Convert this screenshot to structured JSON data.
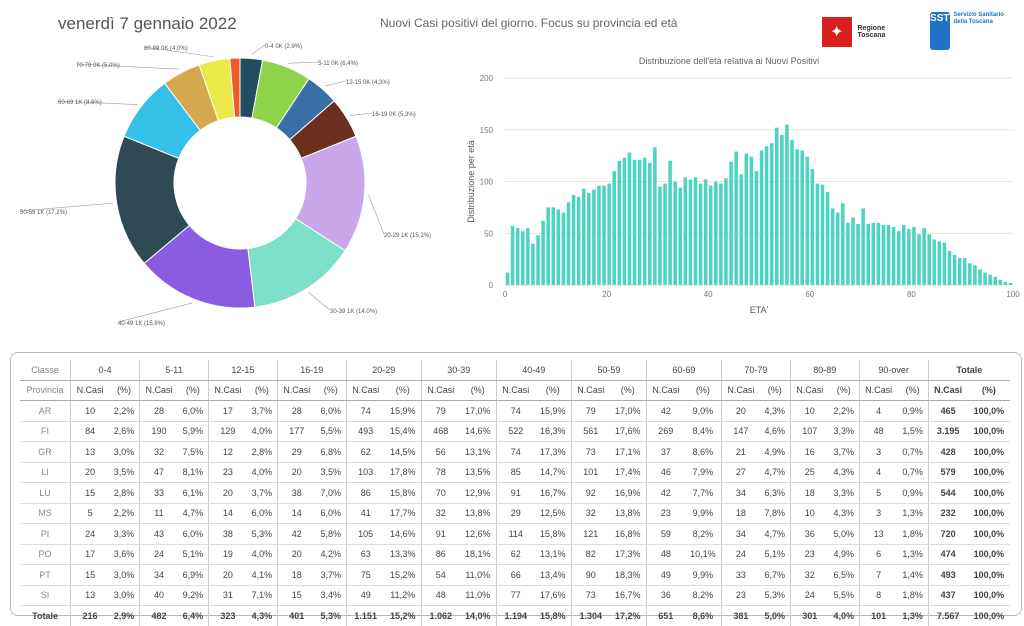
{
  "header": {
    "date": "venerdì 7 gennaio 2022",
    "title": "Nuovi Casi positivi del giorno. Focus su provincia ed età",
    "logo_regione": "Regione Toscana",
    "logo_sst": "SST",
    "logo_sst_text": "Servizio Sanitario della Toscana"
  },
  "chart_data": [
    {
      "type": "pie",
      "title": "",
      "slices": [
        {
          "label": "0-4 0K (2,9%)",
          "value": 2.9,
          "color": "#1f4e5f"
        },
        {
          "label": "5-11 0K (6,4%)",
          "value": 6.4,
          "color": "#8ed34a"
        },
        {
          "label": "12-15 0K (4,3%)",
          "value": 4.3,
          "color": "#3a6ea5"
        },
        {
          "label": "16-19 0K (5,3%)",
          "value": 5.3,
          "color": "#6b2f1f"
        },
        {
          "label": "20-29 1K (15,2%)",
          "value": 15.2,
          "color": "#c8a8e8"
        },
        {
          "label": "30-39 1K (14,0%)",
          "value": 14.0,
          "color": "#7ee0c8"
        },
        {
          "label": "40-49 1K (15,8%)",
          "value": 15.8,
          "color": "#8a5de0"
        },
        {
          "label": "50-59 1K (17,2%)",
          "value": 17.2,
          "color": "#2e4a52"
        },
        {
          "label": "60-69 1K (8,6%)",
          "value": 8.6,
          "color": "#35c0e8"
        },
        {
          "label": "70-79 0K (5,0%)",
          "value": 5.0,
          "color": "#d4a94e"
        },
        {
          "label": "80-89 0K (4,0%)",
          "value": 4.0,
          "color": "#ece84a"
        },
        {
          "label": "",
          "value": 1.3,
          "color": "#f05a28"
        }
      ]
    },
    {
      "type": "bar",
      "title": "Distribuzione dell'età relativa ai Nuovi Positivi",
      "xlabel": "ETA'",
      "ylabel": "Distribuzione per età",
      "xlim": [
        0,
        100
      ],
      "ylim": [
        0,
        200
      ],
      "xticks": [
        0,
        20,
        40,
        60,
        80,
        100
      ],
      "yticks": [
        0,
        50,
        100,
        150,
        200
      ],
      "grid": true,
      "color": "#4dd4c0",
      "x": [
        0,
        1,
        2,
        3,
        4,
        5,
        6,
        7,
        8,
        9,
        10,
        11,
        12,
        13,
        14,
        15,
        16,
        17,
        18,
        19,
        20,
        21,
        22,
        23,
        24,
        25,
        26,
        27,
        28,
        29,
        30,
        31,
        32,
        33,
        34,
        35,
        36,
        37,
        38,
        39,
        40,
        41,
        42,
        43,
        44,
        45,
        46,
        47,
        48,
        49,
        50,
        51,
        52,
        53,
        54,
        55,
        56,
        57,
        58,
        59,
        60,
        61,
        62,
        63,
        64,
        65,
        66,
        67,
        68,
        69,
        70,
        71,
        72,
        73,
        74,
        75,
        76,
        77,
        78,
        79,
        80,
        81,
        82,
        83,
        84,
        85,
        86,
        87,
        88,
        89,
        90,
        91,
        92,
        93,
        94,
        95,
        96,
        97,
        98,
        99
      ],
      "values": [
        12,
        57,
        55,
        52,
        55,
        40,
        48,
        62,
        75,
        75,
        73,
        70,
        80,
        87,
        85,
        93,
        89,
        92,
        96,
        96,
        98,
        110,
        120,
        123,
        128,
        121,
        121,
        123,
        118,
        133,
        95,
        98,
        120,
        100,
        94,
        104,
        102,
        104,
        98,
        102,
        96,
        100,
        98,
        103,
        119,
        129,
        107,
        127,
        124,
        110,
        130,
        134,
        137,
        152,
        145,
        155,
        140,
        131,
        130,
        124,
        112,
        98,
        97,
        90,
        74,
        70,
        79,
        60,
        65,
        59,
        74,
        59,
        60,
        60,
        58,
        58,
        56,
        52,
        58,
        54,
        56,
        49,
        55,
        49,
        44,
        42,
        41,
        33,
        29,
        26,
        26,
        21,
        19,
        15,
        12,
        10,
        8,
        5,
        3,
        2
      ]
    }
  ],
  "table": {
    "classi": [
      "0-4",
      "5-11",
      "12-15",
      "16-19",
      "20-29",
      "30-39",
      "40-49",
      "50-59",
      "60-69",
      "70-79",
      "80-89",
      "90-over"
    ],
    "header_classe": "Classe",
    "header_provincia": "Provincia",
    "header_totale": "Totale",
    "sub_ncasi": "N.Casi",
    "sub_pct": "(%)",
    "rows": [
      {
        "prov": "AR",
        "cells": [
          "10",
          "2,2%",
          "28",
          "6,0%",
          "17",
          "3,7%",
          "28",
          "6,0%",
          "74",
          "15,9%",
          "79",
          "17,0%",
          "74",
          "15,9%",
          "79",
          "17,0%",
          "42",
          "9,0%",
          "20",
          "4,3%",
          "10",
          "2,2%",
          "4",
          "0,9%"
        ],
        "tot": "465",
        "totpct": "100,0%"
      },
      {
        "prov": "FI",
        "cells": [
          "84",
          "2,6%",
          "190",
          "5,9%",
          "129",
          "4,0%",
          "177",
          "5,5%",
          "493",
          "15,4%",
          "468",
          "14,6%",
          "522",
          "16,3%",
          "561",
          "17,6%",
          "269",
          "8,4%",
          "147",
          "4,6%",
          "107",
          "3,3%",
          "48",
          "1,5%"
        ],
        "tot": "3.195",
        "totpct": "100,0%"
      },
      {
        "prov": "GR",
        "cells": [
          "13",
          "3,0%",
          "32",
          "7,5%",
          "12",
          "2,8%",
          "29",
          "6,8%",
          "62",
          "14,5%",
          "56",
          "13,1%",
          "74",
          "17,3%",
          "73",
          "17,1%",
          "37",
          "8,6%",
          "21",
          "4,9%",
          "16",
          "3,7%",
          "3",
          "0,7%"
        ],
        "tot": "428",
        "totpct": "100,0%"
      },
      {
        "prov": "LI",
        "cells": [
          "20",
          "3,5%",
          "47",
          "8,1%",
          "23",
          "4,0%",
          "20",
          "3,5%",
          "103",
          "17,8%",
          "78",
          "13,5%",
          "85",
          "14,7%",
          "101",
          "17,4%",
          "46",
          "7,9%",
          "27",
          "4,7%",
          "25",
          "4,3%",
          "4",
          "0,7%"
        ],
        "tot": "579",
        "totpct": "100,0%"
      },
      {
        "prov": "LU",
        "cells": [
          "15",
          "2,8%",
          "33",
          "6,1%",
          "20",
          "3,7%",
          "38",
          "7,0%",
          "86",
          "15,8%",
          "70",
          "12,9%",
          "91",
          "16,7%",
          "92",
          "16,9%",
          "42",
          "7,7%",
          "34",
          "6,3%",
          "18",
          "3,3%",
          "5",
          "0,9%"
        ],
        "tot": "544",
        "totpct": "100,0%"
      },
      {
        "prov": "MS",
        "cells": [
          "5",
          "2,2%",
          "11",
          "4,7%",
          "14",
          "6,0%",
          "14",
          "6,0%",
          "41",
          "17,7%",
          "32",
          "13,8%",
          "29",
          "12,5%",
          "32",
          "13,8%",
          "23",
          "9,9%",
          "18",
          "7,8%",
          "10",
          "4,3%",
          "3",
          "1,3%"
        ],
        "tot": "232",
        "totpct": "100,0%"
      },
      {
        "prov": "PI",
        "cells": [
          "24",
          "3,3%",
          "43",
          "6,0%",
          "38",
          "5,3%",
          "42",
          "5,8%",
          "105",
          "14,6%",
          "91",
          "12,6%",
          "114",
          "15,8%",
          "121",
          "16,8%",
          "59",
          "8,2%",
          "34",
          "4,7%",
          "36",
          "5,0%",
          "13",
          "1,8%"
        ],
        "tot": "720",
        "totpct": "100,0%"
      },
      {
        "prov": "PO",
        "cells": [
          "17",
          "3,6%",
          "24",
          "5,1%",
          "19",
          "4,0%",
          "20",
          "4,2%",
          "63",
          "13,3%",
          "86",
          "18,1%",
          "62",
          "13,1%",
          "82",
          "17,3%",
          "48",
          "10,1%",
          "24",
          "5,1%",
          "23",
          "4,9%",
          "6",
          "1,3%"
        ],
        "tot": "474",
        "totpct": "100,0%"
      },
      {
        "prov": "PT",
        "cells": [
          "15",
          "3,0%",
          "34",
          "6,9%",
          "20",
          "4,1%",
          "18",
          "3,7%",
          "75",
          "15,2%",
          "54",
          "11,0%",
          "66",
          "13,4%",
          "90",
          "18,3%",
          "49",
          "9,9%",
          "33",
          "6,7%",
          "32",
          "6,5%",
          "7",
          "1,4%"
        ],
        "tot": "493",
        "totpct": "100,0%"
      },
      {
        "prov": "SI",
        "cells": [
          "13",
          "3,0%",
          "40",
          "9,2%",
          "31",
          "7,1%",
          "15",
          "3,4%",
          "49",
          "11,2%",
          "48",
          "11,0%",
          "77",
          "17,6%",
          "73",
          "16,7%",
          "36",
          "8,2%",
          "23",
          "5,3%",
          "24",
          "5,5%",
          "8",
          "1,8%"
        ],
        "tot": "437",
        "totpct": "100,0%"
      }
    ],
    "total_row": {
      "prov": "Totale",
      "cells": [
        "216",
        "2,9%",
        "482",
        "6,4%",
        "323",
        "4,3%",
        "401",
        "5,3%",
        "1.151",
        "15,2%",
        "1.062",
        "14,0%",
        "1.194",
        "15,8%",
        "1.304",
        "17,2%",
        "651",
        "8,6%",
        "381",
        "5,0%",
        "301",
        "4,0%",
        "101",
        "1,3%"
      ],
      "tot": "7.567",
      "totpct": "100,0%"
    }
  }
}
